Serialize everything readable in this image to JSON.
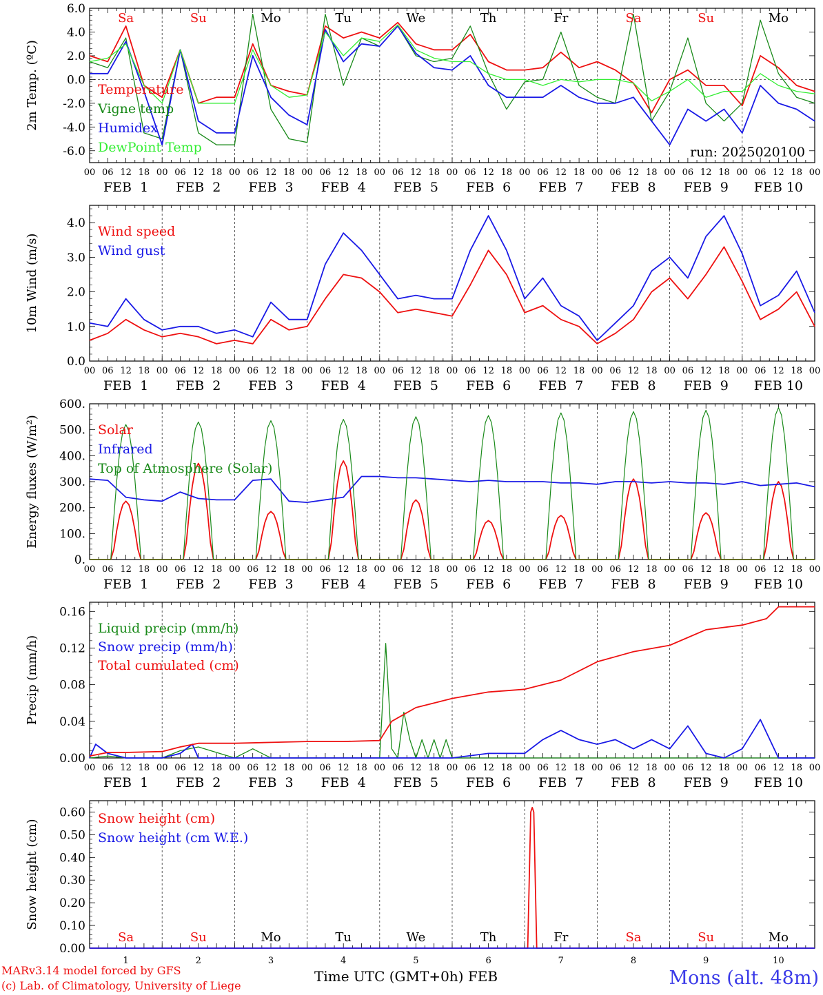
{
  "footer": {
    "model_line": "MARv3.14 model forced by GFS",
    "lab_line": "(c) Lab. of Climatology, University of Liege",
    "time_label": "Time UTC (GMT+0h) FEB",
    "station": "Mons (alt. 48m)"
  },
  "colors": {
    "red": "#ee1111",
    "green": "#1a8a1a",
    "lightgreen": "#33ee33",
    "blue": "#1a1ae6",
    "axis": "#000000",
    "weekend": "#ee1111",
    "weekday": "#000000",
    "station": "#3a3ae8"
  },
  "day_abbrev": [
    "Sa",
    "Su",
    "Mo",
    "Tu",
    "We",
    "Th",
    "Fr",
    "Sa",
    "Su",
    "Mo"
  ],
  "weekend_flags": [
    true,
    true,
    false,
    false,
    false,
    false,
    false,
    true,
    true,
    false
  ],
  "date_labels": [
    "FEB  1",
    "FEB  2",
    "FEB  3",
    "FEB  4",
    "FEB  5",
    "FEB  6",
    "FEB  7",
    "FEB  8",
    "FEB  9",
    "FEB 10"
  ],
  "day_numbers": [
    "1",
    "2",
    "3",
    "4",
    "5",
    "6",
    "7",
    "8",
    "9",
    "10"
  ],
  "hour_ticks": [
    "00",
    "06",
    "12",
    "18"
  ],
  "chart_data": [
    {
      "type": "line",
      "ylabel": "2m Temp. (ºC)",
      "ylim": [
        -7,
        6
      ],
      "yticks": [
        "6.0",
        "4.0",
        "2.0",
        "0.0",
        "-2.0",
        "-4.0",
        "-6.0"
      ],
      "ytick_values": [
        6,
        4,
        2,
        0,
        -2,
        -4,
        -6
      ],
      "zero_line": true,
      "annotation": "run: 2025020100",
      "x_unit": "hours since FEB 1 00 UTC",
      "series": [
        {
          "name": "Temperature",
          "color_key": "red",
          "x": [
            0,
            6,
            12,
            18,
            24,
            30,
            36,
            42,
            48,
            54,
            60,
            66,
            72,
            78,
            84,
            90,
            96,
            102,
            108,
            114,
            120,
            126,
            132,
            138,
            144,
            150,
            156,
            162,
            168,
            174,
            180,
            186,
            192,
            198,
            204,
            210,
            216,
            222,
            228,
            234,
            240
          ],
          "values": [
            2.0,
            1.5,
            4.5,
            -0.5,
            -1.5,
            2.5,
            -2.0,
            -1.5,
            -1.5,
            3.0,
            -0.5,
            -1.0,
            -1.3,
            4.5,
            3.5,
            4.0,
            3.5,
            4.8,
            3.0,
            2.5,
            2.5,
            3.8,
            1.5,
            0.8,
            0.8,
            1.0,
            2.3,
            1.0,
            1.5,
            0.8,
            -0.3,
            -2.8,
            0.0,
            0.8,
            -0.5,
            -0.5,
            -2.2,
            2.0,
            1.0,
            -0.5,
            -1.0
          ]
        },
        {
          "name": "Vigne temp",
          "color_key": "green",
          "x": [
            0,
            6,
            12,
            18,
            24,
            30,
            36,
            42,
            48,
            54,
            60,
            66,
            72,
            78,
            84,
            90,
            96,
            102,
            108,
            114,
            120,
            126,
            132,
            138,
            144,
            150,
            156,
            162,
            168,
            174,
            180,
            186,
            192,
            198,
            204,
            210,
            216,
            222,
            228,
            234,
            240
          ],
          "values": [
            1.5,
            1.0,
            3.5,
            -4.5,
            -5.0,
            2.5,
            -4.5,
            -5.5,
            -5.5,
            5.5,
            -2.5,
            -5.0,
            -5.3,
            5.5,
            -0.5,
            3.5,
            2.8,
            4.5,
            2.0,
            1.5,
            1.8,
            4.5,
            0.5,
            -2.5,
            -0.2,
            0.0,
            4.0,
            -0.5,
            -1.5,
            -2.0,
            5.5,
            -3.5,
            -1.0,
            3.5,
            -2.0,
            -3.5,
            -2.0,
            5.0,
            0.5,
            -1.5,
            -2.0
          ]
        },
        {
          "name": "Humidex",
          "color_key": "blue",
          "x": [
            0,
            6,
            12,
            18,
            24,
            30,
            36,
            42,
            48,
            54,
            60,
            66,
            72,
            78,
            84,
            90,
            96,
            102,
            108,
            114,
            120,
            126,
            132,
            138,
            144,
            150,
            156,
            162,
            168,
            174,
            180,
            186,
            192,
            198,
            204,
            210,
            216,
            222,
            228,
            234,
            240
          ],
          "values": [
            0.5,
            0.5,
            3.2,
            -1.0,
            -5.5,
            2.5,
            -3.5,
            -4.5,
            -4.5,
            2.0,
            -1.5,
            -3.0,
            -3.8,
            4.2,
            1.5,
            3.0,
            2.8,
            4.5,
            2.2,
            1.0,
            0.8,
            2.0,
            -0.5,
            -1.5,
            -1.5,
            -1.5,
            -0.5,
            -1.5,
            -2.0,
            -2.0,
            -1.5,
            -3.5,
            -5.5,
            -2.5,
            -3.5,
            -2.5,
            -4.5,
            -0.5,
            -2.0,
            -2.5,
            -3.5
          ]
        },
        {
          "name": "DewPoint Temp",
          "color_key": "lightgreen",
          "x": [
            0,
            6,
            12,
            18,
            24,
            30,
            36,
            42,
            48,
            54,
            60,
            66,
            72,
            78,
            84,
            90,
            96,
            102,
            108,
            114,
            120,
            126,
            132,
            138,
            144,
            150,
            156,
            162,
            168,
            174,
            180,
            186,
            192,
            198,
            204,
            210,
            216,
            222,
            228,
            234,
            240
          ],
          "values": [
            1.5,
            1.8,
            3.0,
            -0.5,
            -2.0,
            2.5,
            -2.0,
            -2.0,
            -2.0,
            2.5,
            -0.5,
            -1.5,
            -1.3,
            4.0,
            2.0,
            3.5,
            3.2,
            4.6,
            2.5,
            1.8,
            1.5,
            1.5,
            0.5,
            0.0,
            0.0,
            -0.5,
            0.0,
            -0.2,
            0.0,
            0.0,
            -0.3,
            -1.8,
            -1.0,
            0.0,
            -1.5,
            -1.0,
            -1.0,
            0.5,
            -0.5,
            -1.0,
            -1.2
          ]
        }
      ]
    },
    {
      "type": "line",
      "ylabel": "10m Wind (m/s)",
      "ylim": [
        0,
        4.5
      ],
      "yticks": [
        "4.0",
        "3.0",
        "2.0",
        "1.0",
        "0.0"
      ],
      "ytick_values": [
        4,
        3,
        2,
        1,
        0
      ],
      "x_unit": "hours since FEB 1 00 UTC",
      "series": [
        {
          "name": "Wind speed",
          "color_key": "red",
          "x": [
            0,
            6,
            12,
            18,
            24,
            30,
            36,
            42,
            48,
            54,
            60,
            66,
            72,
            78,
            84,
            90,
            96,
            102,
            108,
            114,
            120,
            126,
            132,
            138,
            144,
            150,
            156,
            162,
            168,
            174,
            180,
            186,
            192,
            198,
            204,
            210,
            216,
            222,
            228,
            234,
            240
          ],
          "values": [
            0.6,
            0.8,
            1.2,
            0.9,
            0.7,
            0.8,
            0.7,
            0.5,
            0.6,
            0.5,
            1.2,
            0.9,
            1.0,
            1.8,
            2.5,
            2.4,
            2.0,
            1.4,
            1.5,
            1.4,
            1.3,
            2.2,
            3.2,
            2.5,
            1.4,
            1.6,
            1.2,
            1.0,
            0.5,
            0.8,
            1.2,
            2.0,
            2.4,
            1.8,
            2.5,
            3.3,
            2.3,
            1.2,
            1.5,
            2.0,
            1.0
          ]
        },
        {
          "name": "Wind gust",
          "color_key": "blue",
          "x": [
            0,
            6,
            12,
            18,
            24,
            30,
            36,
            42,
            48,
            54,
            60,
            66,
            72,
            78,
            84,
            90,
            96,
            102,
            108,
            114,
            120,
            126,
            132,
            138,
            144,
            150,
            156,
            162,
            168,
            174,
            180,
            186,
            192,
            198,
            204,
            210,
            216,
            222,
            228,
            234,
            240
          ],
          "values": [
            1.1,
            1.0,
            1.8,
            1.2,
            0.9,
            1.0,
            1.0,
            0.8,
            0.9,
            0.7,
            1.7,
            1.2,
            1.2,
            2.8,
            3.7,
            3.2,
            2.5,
            1.8,
            1.9,
            1.8,
            1.8,
            3.2,
            4.2,
            3.2,
            1.8,
            2.4,
            1.6,
            1.3,
            0.6,
            1.1,
            1.6,
            2.6,
            3.0,
            2.4,
            3.6,
            4.2,
            3.1,
            1.6,
            1.9,
            2.6,
            1.4
          ]
        }
      ]
    },
    {
      "type": "line",
      "ylabel": "Energy fluxes (W/m²)",
      "ylim": [
        0,
        600
      ],
      "yticks": [
        "600.",
        "500.",
        "400.",
        "300.",
        "200.",
        "100.",
        "0."
      ],
      "ytick_values": [
        600,
        500,
        400,
        300,
        200,
        100,
        0
      ],
      "x_unit": "hours since FEB 1 00 UTC",
      "series": [
        {
          "name": "Solar",
          "color_key": "red",
          "day_peaks": [
            225,
            370,
            185,
            380,
            230,
            150,
            170,
            310,
            180,
            300
          ],
          "day_peak_hours": [
            12,
            12,
            12,
            12,
            12,
            12,
            12,
            12,
            12,
            12
          ],
          "day_halfwidth_hours": [
            4.5,
            4.5,
            4.5,
            4.5,
            4.5,
            4.5,
            4.5,
            4.5,
            4.5,
            4.5
          ]
        },
        {
          "name": "Infrared",
          "color_key": "blue",
          "x": [
            0,
            6,
            12,
            18,
            24,
            30,
            36,
            42,
            48,
            54,
            60,
            66,
            72,
            78,
            84,
            90,
            96,
            102,
            108,
            114,
            120,
            126,
            132,
            138,
            144,
            150,
            156,
            162,
            168,
            174,
            180,
            186,
            192,
            198,
            204,
            210,
            216,
            222,
            228,
            234,
            240
          ],
          "values": [
            310,
            305,
            240,
            230,
            225,
            260,
            235,
            230,
            230,
            305,
            310,
            225,
            220,
            230,
            240,
            320,
            320,
            315,
            315,
            310,
            305,
            300,
            305,
            300,
            300,
            300,
            295,
            295,
            290,
            300,
            300,
            295,
            300,
            295,
            295,
            290,
            300,
            285,
            290,
            295,
            280
          ]
        },
        {
          "name": "Top of Atmosphere (Solar)",
          "color_key": "green",
          "day_peaks": [
            520,
            530,
            535,
            540,
            550,
            555,
            565,
            570,
            575,
            585
          ],
          "day_peak_hours": [
            12,
            12,
            12,
            12,
            12,
            12,
            12,
            12,
            12,
            12
          ],
          "day_halfwidth_hours": [
            5,
            5,
            5,
            5,
            5,
            5,
            5,
            5,
            5,
            5
          ]
        }
      ]
    },
    {
      "type": "line",
      "ylabel": "Precip (mm/h)",
      "ylim": [
        0,
        0.17
      ],
      "yticks": [
        "0.16",
        "0.12",
        "0.08",
        "0.04",
        "0.00"
      ],
      "ytick_values": [
        0.16,
        0.12,
        0.08,
        0.04,
        0.0
      ],
      "x_unit": "hours since FEB 1 00 UTC",
      "series": [
        {
          "name": "Liquid precip (mm/h)",
          "color_key": "green",
          "x": [
            0,
            6,
            12,
            24,
            30,
            36,
            48,
            54,
            60,
            72,
            90,
            96,
            98,
            100,
            102,
            104,
            106,
            108,
            110,
            112,
            114,
            116,
            118,
            120,
            126,
            132,
            144,
            150,
            156,
            168,
            180,
            192,
            204,
            216,
            228,
            240
          ],
          "values": [
            0,
            0.002,
            0,
            0,
            0.008,
            0.012,
            0,
            0.01,
            0,
            0,
            0,
            0,
            0.125,
            0.01,
            0,
            0.05,
            0.02,
            0,
            0.02,
            0,
            0.02,
            0,
            0.02,
            0,
            0,
            0,
            0,
            0,
            0,
            0,
            0,
            0,
            0,
            0,
            0,
            0
          ]
        },
        {
          "name": "Snow precip (mm/h)",
          "color_key": "blue",
          "x": [
            0,
            2,
            6,
            12,
            24,
            30,
            34,
            36,
            48,
            72,
            96,
            120,
            132,
            144,
            150,
            156,
            162,
            168,
            174,
            180,
            186,
            192,
            198,
            204,
            210,
            216,
            222,
            228,
            234,
            240
          ],
          "values": [
            0,
            0.015,
            0.005,
            0,
            0,
            0.005,
            0.015,
            0,
            0,
            0,
            0,
            0,
            0.005,
            0.005,
            0.02,
            0.03,
            0.02,
            0.015,
            0.02,
            0.01,
            0.02,
            0.01,
            0.035,
            0.005,
            0,
            0.01,
            0.042,
            0,
            0,
            0
          ]
        },
        {
          "name": "Total cumulated (cm)",
          "color_key": "red",
          "x": [
            0,
            6,
            12,
            24,
            30,
            36,
            48,
            60,
            72,
            84,
            96,
            100,
            108,
            120,
            132,
            144,
            156,
            168,
            180,
            192,
            204,
            216,
            224,
            228,
            240
          ],
          "values": [
            0.002,
            0.006,
            0.006,
            0.007,
            0.012,
            0.016,
            0.016,
            0.017,
            0.018,
            0.018,
            0.019,
            0.04,
            0.055,
            0.065,
            0.072,
            0.075,
            0.085,
            0.105,
            0.116,
            0.123,
            0.14,
            0.145,
            0.152,
            0.165,
            0.165
          ]
        }
      ]
    },
    {
      "type": "line",
      "ylabel": "Snow height (cm)",
      "ylim": [
        0,
        0.65
      ],
      "yticks": [
        "0.60",
        "0.50",
        "0.40",
        "0.30",
        "0.20",
        "0.10",
        "0.00"
      ],
      "ytick_values": [
        0.6,
        0.5,
        0.4,
        0.3,
        0.2,
        0.1,
        0.0
      ],
      "x_unit": "hours since FEB 1 00 UTC",
      "series": [
        {
          "name": "Snow height (cm)",
          "color_key": "red",
          "x": [
            0,
            145,
            146,
            146.5,
            147,
            148,
            240
          ],
          "values": [
            0,
            0,
            0.6,
            0.62,
            0.6,
            0,
            0
          ]
        },
        {
          "name": "Snow height (cm W.E.)",
          "color_key": "blue",
          "x": [
            0,
            240
          ],
          "values": [
            0,
            0
          ]
        }
      ]
    }
  ]
}
